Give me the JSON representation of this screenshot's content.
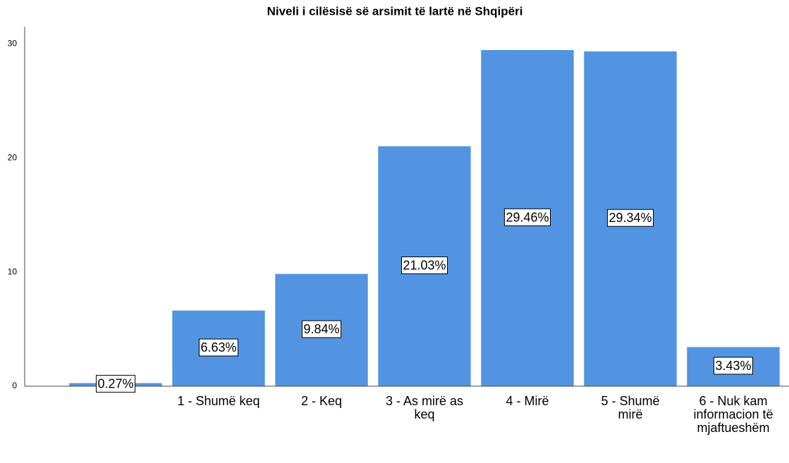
{
  "chart_data": {
    "type": "bar",
    "title": "Niveli i cilësisë së arsimit të lartë në Shqipëri",
    "categories": [
      null,
      "1 - Shumë keq",
      "2 - Keq",
      "3 - As mirë as keq",
      "4 - Mirë",
      "5 - Shumë mirë",
      "6 - Nuk kam informacion të mjaftueshëm"
    ],
    "values": [
      0.27,
      6.63,
      9.84,
      21.03,
      29.46,
      29.34,
      3.43
    ],
    "value_labels": [
      "0.27%",
      "6.63%",
      "9.84%",
      "21.03%",
      "29.46%",
      "29.34%",
      "3.43%"
    ],
    "color": "#5294e2",
    "ylim": [
      0,
      31.5
    ],
    "yticks": [
      0,
      10,
      20,
      30
    ],
    "grid": false
  }
}
